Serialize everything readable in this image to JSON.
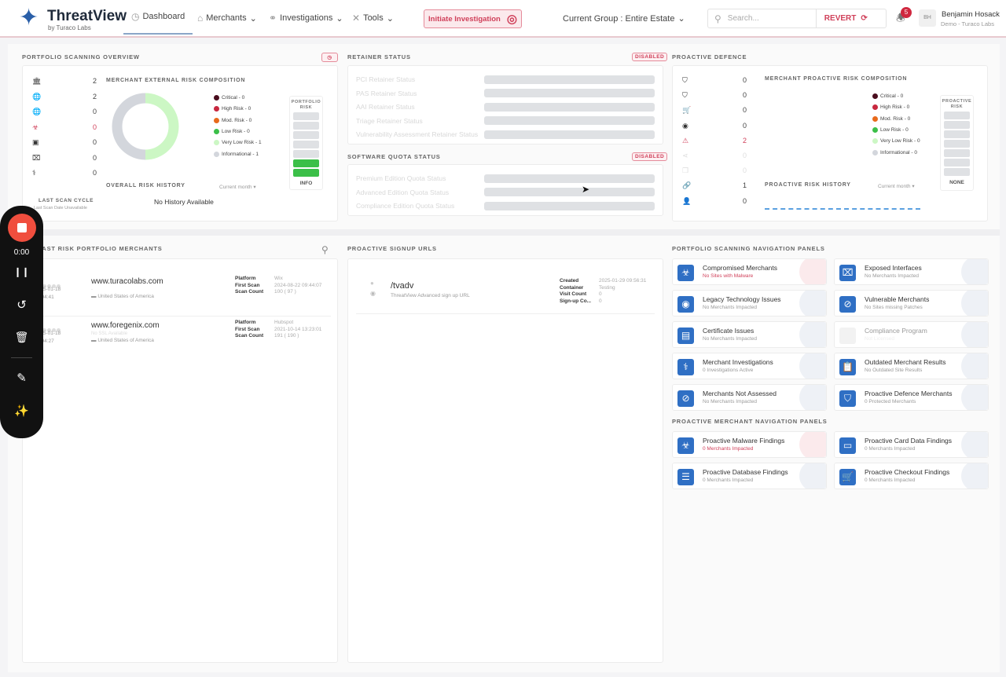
{
  "header": {
    "app_title": "ThreatView",
    "app_subtitle": "by Turaco Labs",
    "nav": [
      {
        "label": "Dashboard",
        "icon": "dashboard-icon"
      },
      {
        "label": "Merchants",
        "icon": "store-icon"
      },
      {
        "label": "Investigations",
        "icon": "stethoscope-icon"
      },
      {
        "label": "Tools",
        "icon": "tools-icon"
      }
    ],
    "initiate_label": "Initiate Investigation",
    "group_label": "Current Group : Entire Estate",
    "search_placeholder": "Search...",
    "revert_label": "REVERT",
    "notification_count": "5",
    "user_initials": "BH",
    "user_name": "Benjamin Hosack",
    "user_org": "Demo - Turaco Labs"
  },
  "portfolio": {
    "title": "PORTFOLIO SCANNING OVERVIEW",
    "stats": [
      {
        "icon": "bank-icon",
        "value": "2"
      },
      {
        "icon": "globe-icon",
        "value": "2"
      },
      {
        "icon": "globe-alert-icon",
        "value": "0"
      },
      {
        "icon": "biohazard-icon",
        "value": "0",
        "color": "#d0405a"
      },
      {
        "icon": "id-card-icon",
        "value": "0"
      },
      {
        "icon": "door-icon",
        "value": "0"
      },
      {
        "icon": "stethoscope-icon",
        "value": "0"
      }
    ],
    "composition_title": "MERCHANT EXTERNAL RISK COMPOSITION",
    "legend": [
      {
        "label": "Critical - 0",
        "color": "#4a0d1e"
      },
      {
        "label": "High Risk - 0",
        "color": "#c8283f"
      },
      {
        "label": "Mod. Risk - 0",
        "color": "#e86a1c"
      },
      {
        "label": "Low Risk - 0",
        "color": "#3bbf48"
      },
      {
        "label": "Very Low Risk - 1",
        "color": "#ccf7c4"
      },
      {
        "label": "Informational - 1",
        "color": "#d3d6dc"
      }
    ],
    "donut": [
      {
        "label": "Very Low Risk",
        "value": 1,
        "color": "#ccf7c4"
      },
      {
        "label": "Informational",
        "value": 1,
        "color": "#d3d6dc"
      }
    ],
    "risk_box_title": "PORTFOLIO RISK",
    "risk_level": "INFO",
    "risk_bars_filled": 2,
    "history_title": "OVERALL RISK HISTORY",
    "period": "Current month",
    "history_empty": "No History Available",
    "last_scan_title": "LAST SCAN CYCLE",
    "last_scan_value": "Last Scan Date Unavailable"
  },
  "retainer": {
    "title": "RETAINER STATUS",
    "badge": "DISABLED",
    "rows": [
      "PCI Retainer Status",
      "PAS Retainer Status",
      "AAI Retainer Status",
      "Triage Retainer Status",
      "Vulnerability Assessment Retainer Status"
    ]
  },
  "quota": {
    "title": "SOFTWARE QUOTA STATUS",
    "badge": "DISABLED",
    "rows": [
      "Premium Edition Quota Status",
      "Advanced Edition Quota Status",
      "Compliance Edition Quota Status"
    ]
  },
  "proactive": {
    "title": "PROACTIVE DEFENCE",
    "stats": [
      {
        "icon": "shield-icon",
        "value": "0"
      },
      {
        "icon": "shield-gear-icon",
        "value": "0"
      },
      {
        "icon": "cart-icon",
        "value": "0"
      },
      {
        "icon": "webcam-icon",
        "value": "0"
      },
      {
        "icon": "warning-icon",
        "value": "2",
        "color": "#d0405a"
      },
      {
        "icon": "share-icon",
        "value": "0",
        "color": "#ddd"
      },
      {
        "icon": "copy-icon",
        "value": "0",
        "color": "#ddd"
      },
      {
        "icon": "link-icon",
        "value": "1"
      },
      {
        "icon": "user-icon",
        "value": "0"
      }
    ],
    "composition_title": "MERCHANT PROACTIVE RISK COMPOSITION",
    "legend": [
      {
        "label": "Critical - 0",
        "color": "#4a0d1e"
      },
      {
        "label": "High Risk - 0",
        "color": "#c8283f"
      },
      {
        "label": "Mod. Risk - 0",
        "color": "#e86a1c"
      },
      {
        "label": "Low Risk - 0",
        "color": "#3bbf48"
      },
      {
        "label": "Very Low Risk - 0",
        "color": "#ccf7c4"
      },
      {
        "label": "Informational - 0",
        "color": "#d3d6dc"
      }
    ],
    "risk_box_title": "PROACTIVE RISK",
    "risk_level": "NONE",
    "history_title": "PROACTIVE RISK HISTORY",
    "period": "Current month"
  },
  "merchants": {
    "title": "LAST RISK PORTFOLIO MERCHANTS",
    "items": [
      {
        "url": "www.turacolabs.com",
        "sub": "-",
        "date": "2025-01-18",
        "time": "12:04:41",
        "country": "United States of America",
        "platform": "Wix",
        "first_scan": "2024-08-22 09:44:07",
        "scan_count": "100  ( 97 )",
        "dots_green": 2
      },
      {
        "url": "www.foregenix.com",
        "sub": "No SSL Available",
        "date": "2025-01-18",
        "time": "12:04:27",
        "country": "United States of America",
        "platform": "Hubspot",
        "first_scan": "2021-10-14 13:23:01",
        "scan_count": "191  ( 190 )",
        "dots_green": 0
      }
    ],
    "labels": {
      "platform": "Platform",
      "first_scan": "First Scan",
      "scan_count": "Scan Count"
    }
  },
  "signup": {
    "title": "PROACTIVE SIGNUP URLS",
    "items": [
      {
        "path": "/tvadv",
        "desc": "ThreatView Advanced sign up URL",
        "created": "2025-01-29 09:56:31",
        "container": "Testing",
        "visit_count": "0",
        "signup_count": "0"
      }
    ],
    "labels": {
      "created": "Created",
      "container": "Container",
      "visit_count": "Visit Count",
      "signup_count": "Sign-up Co..."
    }
  },
  "nav_panels": {
    "title": "PORTFOLIO SCANNING NAVIGATION PANELS",
    "items": [
      {
        "name": "Compromised Merchants",
        "sub": "No Sites with Malware",
        "icon": "biohazard-icon",
        "alert": true
      },
      {
        "name": "Exposed Interfaces",
        "sub": "No Merchants Impacted",
        "icon": "door-icon"
      },
      {
        "name": "Legacy Technology Issues",
        "sub": "No Merchants Impacted",
        "icon": "webcam-icon"
      },
      {
        "name": "Vulnerable Merchants",
        "sub": "No Sites missing Patches",
        "icon": "bandage-icon"
      },
      {
        "name": "Certificate Issues",
        "sub": "No Merchants Impacted",
        "icon": "certificate-icon"
      },
      {
        "name": "Compliance Program",
        "sub": "Not Licensed",
        "icon": "clipboard-icon",
        "disabled": true
      },
      {
        "name": "Merchant Investigations",
        "sub": "0 Investigations Active",
        "icon": "stethoscope-icon"
      },
      {
        "name": "Outdated Merchant Results",
        "sub": "No Outdated Site Results",
        "icon": "clipboard-clock-icon"
      },
      {
        "name": "Merchants Not Assessed",
        "sub": "No Merchants Impacted",
        "icon": "eye-off-icon"
      },
      {
        "name": "Proactive Defence Merchants",
        "sub": "0 Protected Merchants",
        "icon": "shield-gear-icon"
      }
    ]
  },
  "proactive_panels": {
    "title": "PROACTIVE MERCHANT NAVIGATION PANELS",
    "items": [
      {
        "name": "Proactive Malware Findings",
        "sub": "0 Merchants Impacted",
        "icon": "biohazard-icon",
        "alert": true
      },
      {
        "name": "Proactive Card Data Findings",
        "sub": "0 Merchants Impacted",
        "icon": "credit-card-icon"
      },
      {
        "name": "Proactive Database Findings",
        "sub": "0 Merchants Impacted",
        "icon": "database-icon"
      },
      {
        "name": "Proactive Checkout Findings",
        "sub": "0 Merchants Impacted",
        "icon": "cart-icon"
      }
    ]
  },
  "recorder": {
    "time": "0:00"
  }
}
